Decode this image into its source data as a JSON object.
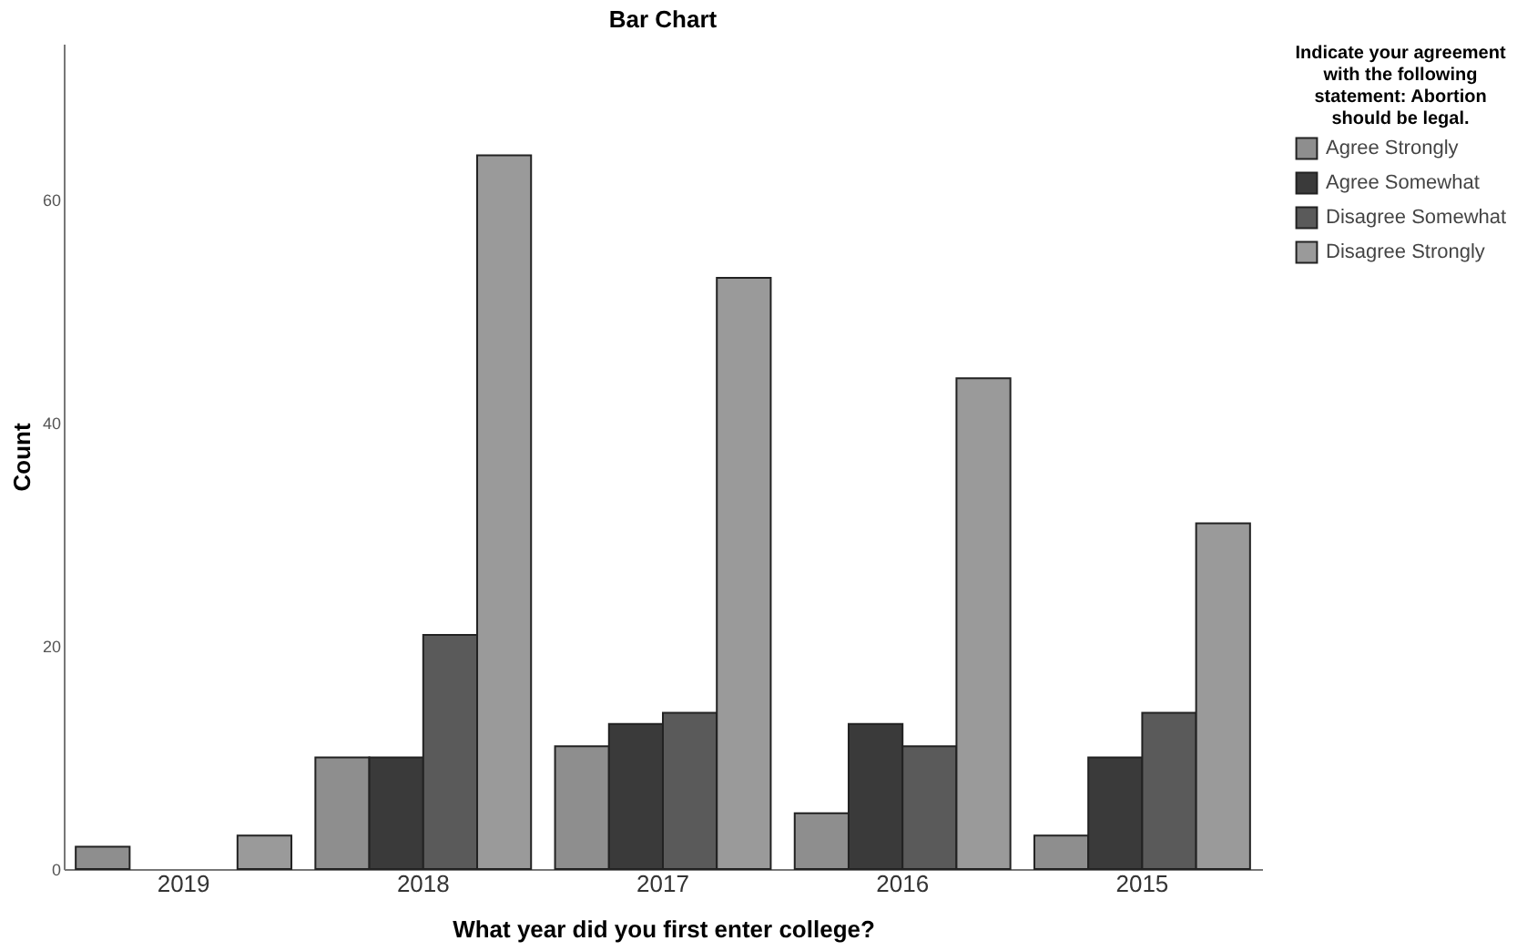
{
  "chart_data": {
    "type": "bar",
    "title": "Bar Chart",
    "xlabel": "What year did you first enter college?",
    "ylabel": "Count",
    "legend_title": "Indicate your agreement with the following statement:  Abortion should be legal.",
    "legend": "top right",
    "categories": [
      "2019",
      "2018",
      "2017",
      "2016",
      "2015"
    ],
    "ylim": [
      0,
      74
    ],
    "yticks": [
      0,
      20,
      40,
      60
    ],
    "series": [
      {
        "name": "Agree Strongly",
        "color": "#8e8e8e",
        "values": [
          2,
          10,
          11,
          5,
          3
        ]
      },
      {
        "name": "Agree Somewhat",
        "color": "#3a3a3a",
        "values": [
          null,
          10,
          13,
          13,
          10
        ]
      },
      {
        "name": "Disagree Somewhat",
        "color": "#5a5a5a",
        "values": [
          null,
          21,
          14,
          11,
          14
        ]
      },
      {
        "name": "Disagree Strongly",
        "color": "#9a9a9a",
        "values": [
          3,
          64,
          53,
          44,
          31
        ]
      }
    ]
  }
}
